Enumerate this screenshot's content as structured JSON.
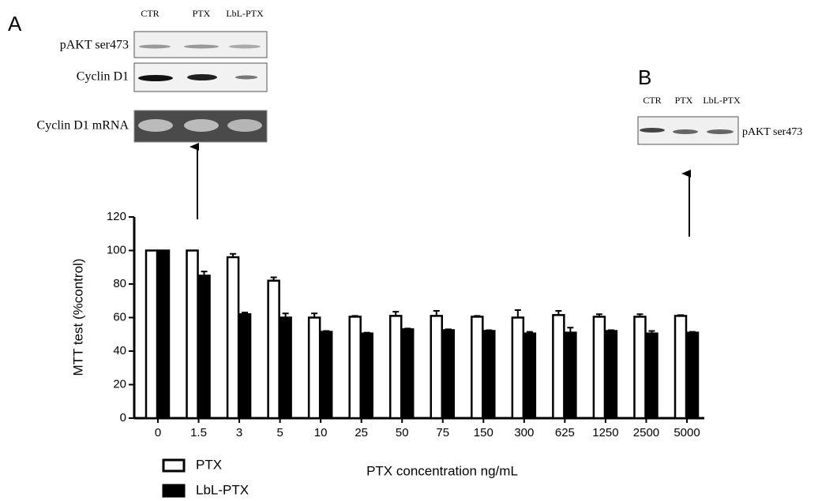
{
  "chart_data": {
    "type": "bar",
    "ylabel": "MTT test (%control)",
    "xlabel": "PTX concentration ng/mL",
    "categories": [
      "0",
      "1.5",
      "3",
      "5",
      "10",
      "25",
      "50",
      "75",
      "150",
      "300",
      "625",
      "1250",
      "2500",
      "5000"
    ],
    "series": [
      {
        "name": "PTX",
        "color": "#ffffff",
        "values": [
          100,
          100,
          96,
          82,
          60,
          60.5,
          61,
          61,
          60.5,
          60,
          61.5,
          60.5,
          60.5,
          61
        ],
        "errors": [
          0,
          0,
          2,
          2,
          2.5,
          0.5,
          2.5,
          3,
          0.5,
          4.5,
          2.5,
          1.5,
          1.5,
          0.5
        ]
      },
      {
        "name": "LbL-PTX",
        "color": "#000000",
        "values": [
          100,
          85,
          62,
          60,
          51.5,
          50.5,
          53,
          52.5,
          52,
          50.5,
          51,
          52,
          50.5,
          51
        ],
        "errors": [
          0,
          2.5,
          1,
          2.5,
          0.5,
          0.5,
          0.5,
          0.5,
          0.5,
          1,
          3,
          0.5,
          1.5,
          0.5
        ]
      }
    ],
    "ylim": [
      0,
      120
    ],
    "yticks": [
      0,
      20,
      40,
      60,
      80,
      100,
      120
    ]
  },
  "blots": {
    "A": {
      "label": "A",
      "lanes": [
        "CTR",
        "PTX",
        "LbL-PTX"
      ],
      "rows": [
        "pAKT ser473",
        "Cyclin D1",
        "Cyclin D1 mRNA"
      ]
    },
    "B": {
      "label": "B",
      "lanes": [
        "CTR",
        "PTX",
        "LbL-PTX"
      ],
      "rows": [
        "pAKT ser473"
      ]
    }
  }
}
